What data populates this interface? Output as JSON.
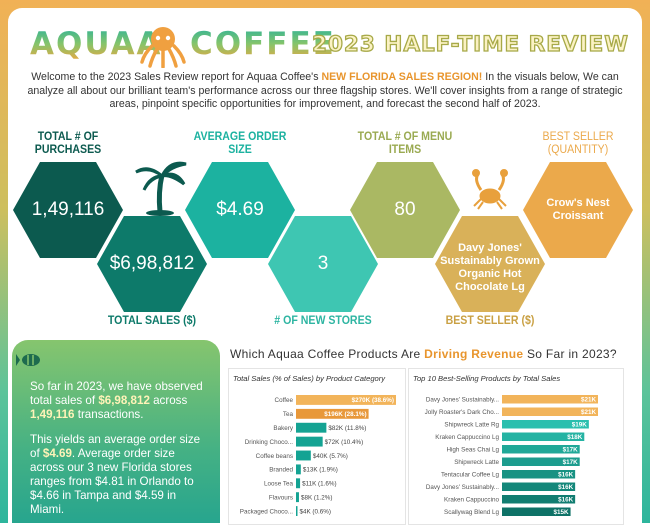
{
  "header": {
    "title_parts": [
      "AQUAA",
      "COFFEE",
      "2023 HALF-TIME REVIEW"
    ],
    "intro": [
      "Welcome to the 2023 Sales Review report for Aquaa Coffee's ",
      "NEW FLORIDA SALES REGION!",
      " In the visuals below, We can analyze all about our brilliant team's performance across our three flagship stores.  We'll cover insights from a range of strategic areas, pinpoint specific opportunities for improvement, and forecast the second half of 2023."
    ]
  },
  "kpis": [
    {
      "label": "TOTAL # OF PURCHASES",
      "value": "1,49,116"
    },
    {
      "label": "TOTAL SALES ($)",
      "value": "$6,98,812"
    },
    {
      "label": "AVERAGE ORDER SIZE",
      "value": "$4.69"
    },
    {
      "label": "# OF NEW STORES",
      "value": "3"
    },
    {
      "label": "TOTAL # OF MENU ITEMS",
      "value": "80"
    },
    {
      "label": "BEST SELLER ($)",
      "value": "Davy Jones' Sustainably Grown Organic Hot Chocolate Lg"
    },
    {
      "label": "BEST SELLER (QUANTITY)",
      "value": "Crow's Nest Croissant"
    }
  ],
  "summary": {
    "paragraphs": [
      [
        "So far in 2023, we have observed total sales of ",
        "$6,98,812",
        " across ",
        "1,49,116",
        " transactions."
      ],
      [
        "This yields an average order size of ",
        "$4.69",
        ".  Average order size across our 3 new Florida stores ranges from $4.81 in Orlando to $4.66 in Tampa and $4.59 in Miami."
      ]
    ]
  },
  "section_title": [
    "Which Aquaa Coffee Products Are ",
    "Driving Revenue",
    " So Far in 2023?"
  ],
  "chart_data": [
    {
      "type": "bar",
      "orientation": "horizontal",
      "title": "Total Sales (% of Sales) by Product Category",
      "categories": [
        "Coffee",
        "Tea",
        "Bakery",
        "Drinking Choco...",
        "Coffee beans",
        "Branded",
        "Loose Tea",
        "Flavours",
        "Packaged Choco..."
      ],
      "values": [
        270,
        196,
        82,
        72,
        40,
        13,
        11,
        8,
        4
      ],
      "value_labels": [
        "$270K (38.6%)",
        "$196K (28.1%)",
        "$82K (11.8%)",
        "$72K (10.4%)",
        "$40K (5.7%)",
        "$13K (1.9%)",
        "$11K (1.6%)",
        "$8K (1.2%)",
        "$4K (0.6%)"
      ],
      "colors": [
        "#f2b45a",
        "#e8983a",
        "#14a393",
        "#14a393",
        "#14a393",
        "#14a393",
        "#14a393",
        "#14a393",
        "#14a393"
      ]
    },
    {
      "type": "bar",
      "orientation": "horizontal",
      "title": "Top 10 Best-Selling Products by Total Sales",
      "categories": [
        "Davy Jones' Sustainably...",
        "Jolly Roaster's Dark Cho...",
        "Shipwreck Latte Rg",
        "Kraken Cappuccino Lg",
        "High Seas Chai Lg",
        "Shipwreck Latte",
        "Tentacular Coffee Lg",
        "Davy Jones' Sustainably...",
        "Kraken Cappuccino",
        "Scallywag Blend Lg"
      ],
      "values": [
        21,
        21,
        19,
        18,
        17,
        17,
        16,
        16,
        16,
        15
      ],
      "value_labels": [
        "$21K",
        "$21K",
        "$19K",
        "$18K",
        "$17K",
        "$17K",
        "$16K",
        "$16K",
        "$16K",
        "$15K"
      ],
      "colors": [
        "#f2b45a",
        "#f2b45a",
        "#2bbfae",
        "#25b3a3",
        "#20a898",
        "#1c9c8e",
        "#189283",
        "#14877a",
        "#117d71",
        "#0e7267"
      ]
    }
  ]
}
